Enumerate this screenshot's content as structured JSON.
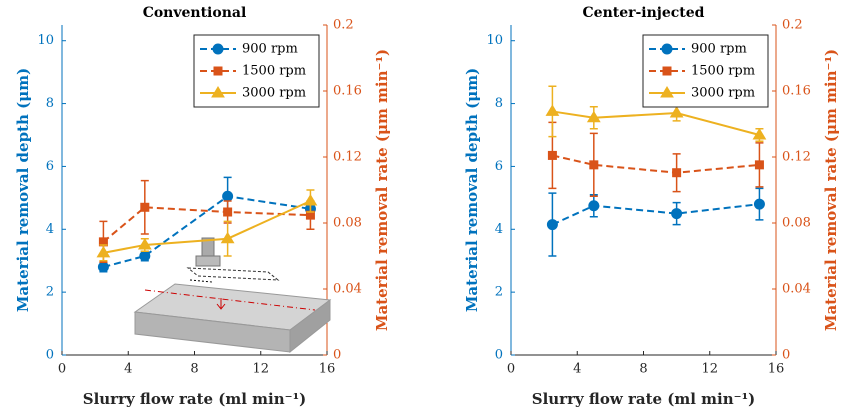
{
  "chart_data": [
    {
      "type": "line",
      "title": "Conventional",
      "x_label": "Slurry flow rate (ml min⁻¹)",
      "y_label": "Material removal depth (μm)",
      "y2_label": "Material removal rate (μm min⁻¹)",
      "xlim": [
        0,
        16
      ],
      "xticks": [
        0,
        4,
        8,
        12,
        16
      ],
      "ylim": [
        0,
        10.5
      ],
      "yticks": [
        0,
        2,
        4,
        6,
        8,
        10
      ],
      "y2lim": [
        0,
        0.2
      ],
      "y2ticks": [
        0,
        0.04,
        0.08,
        0.12,
        0.16,
        0.2
      ],
      "y_color": "#0072bd",
      "y2_color": "#d95319",
      "legend": "upper right",
      "x": [
        2.5,
        5,
        10,
        15
      ],
      "series": [
        {
          "name": "900 rpm",
          "color": "#0072bd",
          "marker": "circle",
          "linestyle": "dashed",
          "values": [
            2.8,
            3.15,
            5.05,
            4.65
          ],
          "errors": [
            0.15,
            0.15,
            0.6,
            0.2
          ]
        },
        {
          "name": "1500 rpm",
          "color": "#d95319",
          "marker": "square",
          "linestyle": "dashed",
          "values": [
            3.6,
            4.7,
            4.55,
            4.45
          ],
          "errors": [
            0.65,
            0.85,
            0.35,
            0.45
          ]
        },
        {
          "name": "3000 rpm",
          "color": "#edb120",
          "marker": "triangle",
          "linestyle": "solid",
          "values": [
            3.25,
            3.5,
            3.7,
            4.9
          ],
          "errors": [
            0.25,
            0.2,
            0.55,
            0.35
          ]
        }
      ]
    },
    {
      "type": "line",
      "title": "Center-injected",
      "x_label": "Slurry flow rate (ml min⁻¹)",
      "y_label": "Material removal depth (μm)",
      "y2_label": "Material removal rate (μm min⁻¹)",
      "xlim": [
        0,
        16
      ],
      "xticks": [
        0,
        4,
        8,
        12,
        16
      ],
      "ylim": [
        0,
        10.5
      ],
      "yticks": [
        0,
        2,
        4,
        6,
        8,
        10
      ],
      "y2lim": [
        0,
        0.2
      ],
      "y2ticks": [
        0,
        0.04,
        0.08,
        0.12,
        0.16,
        0.2
      ],
      "y_color": "#0072bd",
      "y2_color": "#d95319",
      "legend": "upper right",
      "x": [
        2.5,
        5,
        10,
        15
      ],
      "series": [
        {
          "name": "900 rpm",
          "color": "#0072bd",
          "marker": "circle",
          "linestyle": "dashed",
          "values": [
            4.15,
            4.75,
            4.5,
            4.8
          ],
          "errors": [
            1.0,
            0.35,
            0.35,
            0.5
          ]
        },
        {
          "name": "1500 rpm",
          "color": "#d95319",
          "marker": "square",
          "linestyle": "dashed",
          "values": [
            6.35,
            6.05,
            5.8,
            6.05
          ],
          "errors": [
            1.05,
            1.0,
            0.6,
            0.7
          ]
        },
        {
          "name": "3000 rpm",
          "color": "#edb120",
          "marker": "triangle",
          "linestyle": "solid",
          "values": [
            7.75,
            7.55,
            7.7,
            7.0
          ],
          "errors": [
            0.8,
            0.35,
            0.25,
            0.2
          ]
        }
      ]
    }
  ]
}
